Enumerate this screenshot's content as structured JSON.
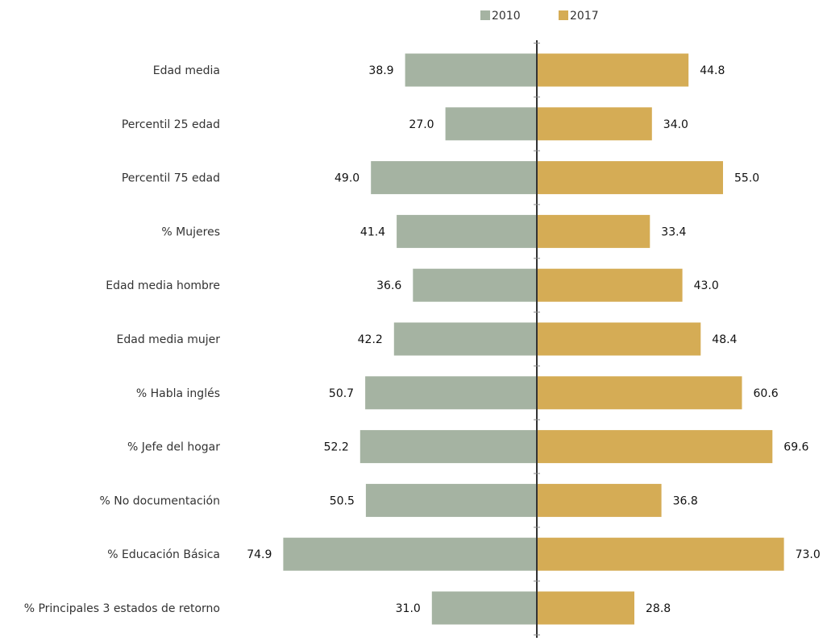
{
  "chart_data": {
    "type": "bar",
    "orientation": "horizontal-diverging",
    "categories": [
      "Edad media",
      "Percentil 25 edad",
      "Percentil 75 edad",
      "% Mujeres",
      "Edad media hombre",
      "Edad media mujer",
      "% Habla inglés",
      "% Jefe del hogar",
      "% No documentación",
      "% Educación Básica",
      "% Principales 3 estados de retorno"
    ],
    "series": [
      {
        "name": "2010",
        "color": "#a5b3a2",
        "direction": "left",
        "values": [
          38.9,
          27.0,
          49.0,
          41.4,
          36.6,
          42.2,
          50.7,
          52.2,
          50.5,
          74.9,
          31.0
        ],
        "labels": [
          "38.9",
          "27.0",
          "49.0",
          "41.4",
          "36.6",
          "42.2",
          "50.7",
          "52.2",
          "50.5",
          "74.9",
          "31.0"
        ]
      },
      {
        "name": "2017",
        "color": "#d5ac55",
        "direction": "right",
        "values": [
          44.8,
          34.0,
          55.0,
          33.4,
          43.0,
          48.4,
          60.6,
          69.6,
          36.8,
          73.0,
          28.8
        ],
        "labels": [
          "44.8",
          "34.0",
          "55.0",
          "33.4",
          "43.0",
          "48.4",
          "60.6",
          "69.6",
          "36.8",
          "73.0",
          "28.8"
        ]
      }
    ],
    "legend_position": "top-center",
    "grid": false,
    "axis_color": "#333333"
  }
}
